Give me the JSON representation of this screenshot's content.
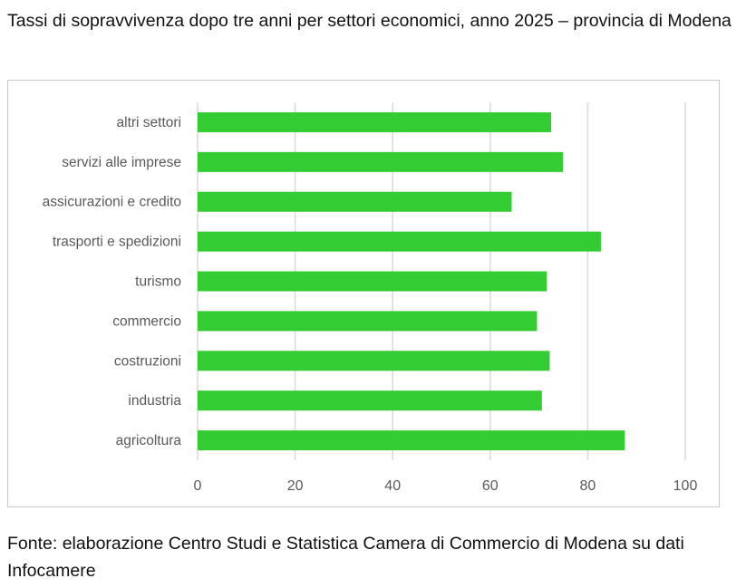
{
  "title": "Tassi di sopravvivenza dopo tre anni per settori economici, anno 2025 – provincia di Modena",
  "footer": "Fonte: elaborazione Centro Studi e Statistica Camera di Commercio di Modena su dati Infocamere",
  "colors": {
    "bar": "#33cc33",
    "grid": "#d9d9d9",
    "text": "#595959"
  },
  "chart_data": {
    "type": "bar",
    "orientation": "horizontal",
    "categories": [
      "altri settori",
      "servizi alle imprese",
      "assicurazioni e credito",
      "trasporti e spedizioni",
      "turismo",
      "commercio",
      "costruzioni",
      "industria",
      "agricoltura"
    ],
    "values": [
      72.5,
      74.9,
      64.4,
      82.7,
      71.6,
      69.6,
      72.2,
      70.6,
      87.6
    ],
    "xlim": [
      0,
      100
    ],
    "xticks": [
      0,
      20,
      40,
      60,
      80,
      100
    ],
    "grid": true,
    "legend": "none",
    "xlabel": "",
    "ylabel": ""
  }
}
